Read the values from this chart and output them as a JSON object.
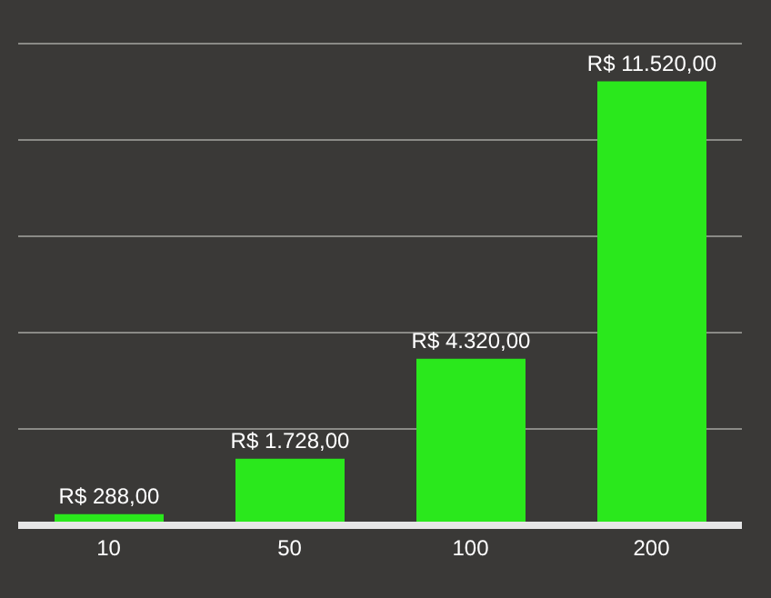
{
  "chart_data": {
    "type": "bar",
    "categories": [
      "10",
      "50",
      "100",
      "200"
    ],
    "values": [
      288,
      1728,
      4320,
      11520
    ],
    "color": "#2ae81c",
    "value_labels": [
      "R$ 288,00",
      "R$ 1.728,00",
      "R$ 4.320,00",
      "R$ 11.520,00"
    ],
    "ylim": [
      0,
      12500
    ],
    "grid": "y",
    "tick_labels": "x"
  }
}
